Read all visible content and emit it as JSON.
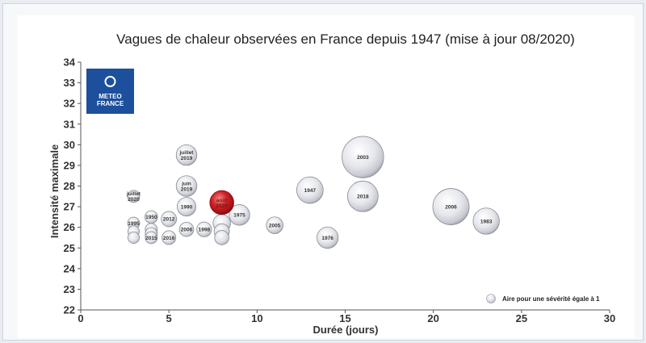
{
  "chart_data": {
    "type": "scatter",
    "subtype": "bubble",
    "title": "Vagues de chaleur observées en France depuis 1947 (mise à jour 08/2020)",
    "xlabel": "Durée (jours)",
    "ylabel": "Intensité maximale",
    "xlim": [
      0,
      30
    ],
    "ylim": [
      22,
      34
    ],
    "xticks": [
      "0",
      "5",
      "10",
      "15",
      "20",
      "25",
      "30"
    ],
    "yticks": [
      "22",
      "23",
      "24",
      "25",
      "26",
      "27",
      "28",
      "29",
      "30",
      "31",
      "32",
      "33",
      "34"
    ],
    "grid": false,
    "legend": {
      "position": "bottom-right",
      "text": "Aire pour une sévérité égale à 1"
    },
    "logo": {
      "line1": "METEO",
      "line2": "FRANCE"
    },
    "colors": {
      "bubble": "#cfd1d8",
      "highlight": "#c0161b",
      "logo": "#1c4f9c"
    },
    "points": [
      {
        "label": "juillet 2020",
        "x": 3,
        "y": 27.5,
        "severity": 1.0
      },
      {
        "label": "1995",
        "x": 3,
        "y": 26.2,
        "severity": 1.0
      },
      {
        "label": "",
        "x": 3,
        "y": 25.8,
        "severity": 0.9
      },
      {
        "label": "",
        "x": 3,
        "y": 25.5,
        "severity": 0.9
      },
      {
        "label": "1950",
        "x": 4,
        "y": 26.5,
        "severity": 1.1
      },
      {
        "label": "",
        "x": 4,
        "y": 25.9,
        "severity": 1.0
      },
      {
        "label": "",
        "x": 4,
        "y": 25.7,
        "severity": 1.0
      },
      {
        "label": "2015",
        "x": 4,
        "y": 25.5,
        "severity": 1.0
      },
      {
        "label": "2012",
        "x": 5,
        "y": 26.4,
        "severity": 1.6
      },
      {
        "label": "2016",
        "x": 5,
        "y": 25.5,
        "severity": 1.3
      },
      {
        "label": "juillet 2019",
        "x": 6,
        "y": 29.5,
        "severity": 2.9
      },
      {
        "label": "juin 2019",
        "x": 6,
        "y": 28,
        "severity": 2.9
      },
      {
        "label": "1990",
        "x": 6,
        "y": 27,
        "severity": 2.4
      },
      {
        "label": "2006",
        "x": 6,
        "y": 25.9,
        "severity": 1.4
      },
      {
        "label": "1998",
        "x": 7,
        "y": 25.9,
        "severity": 1.5
      },
      {
        "label": "",
        "x": 8,
        "y": 26.2,
        "severity": 2.1
      },
      {
        "label": "",
        "x": 8,
        "y": 25.8,
        "severity": 1.6
      },
      {
        "label": "",
        "x": 8,
        "y": 25.5,
        "severity": 1.4
      },
      {
        "label": "1975",
        "x": 9,
        "y": 26.6,
        "severity": 2.9
      },
      {
        "label": "août 2020",
        "x": 8,
        "y": 27.2,
        "severity": 3.9,
        "highlight": true
      },
      {
        "label": "2005",
        "x": 11,
        "y": 26.1,
        "severity": 1.9
      },
      {
        "label": "1947",
        "x": 13,
        "y": 27.8,
        "severity": 4.8
      },
      {
        "label": "1976",
        "x": 14,
        "y": 25.5,
        "severity": 3.1
      },
      {
        "label": "2003",
        "x": 16,
        "y": 29.4,
        "severity": 11.8
      },
      {
        "label": "2018",
        "x": 16,
        "y": 27.5,
        "severity": 6.4
      },
      {
        "label": "2006",
        "x": 21,
        "y": 27,
        "severity": 9.0
      },
      {
        "label": "1983",
        "x": 23,
        "y": 26.3,
        "severity": 4.7
      }
    ]
  }
}
